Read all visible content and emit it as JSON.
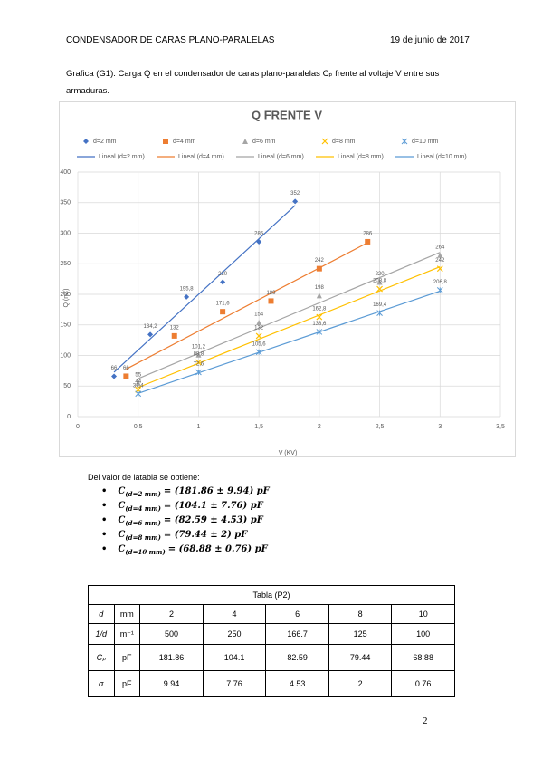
{
  "header": {
    "title": "CONDENSADOR DE CARAS PLANO-PARALELAS",
    "date": "19 de junio de 2017"
  },
  "caption": "Grafica (G1). Carga Q en el condensador de caras plano-paralelas Cₚ frente al voltaje V entre sus armaduras.",
  "chart_data": {
    "type": "scatter",
    "title": "Q FRENTE V",
    "x_label": "V (KV)",
    "y_label": "Q (nC)",
    "xlim": [
      0,
      3.5
    ],
    "xticks": [
      0,
      {
        "value": 0.5,
        "label": "0,5"
      },
      1,
      {
        "value": 1.5,
        "label": "1,5"
      },
      2,
      {
        "value": 2.5,
        "label": "2,5"
      },
      3,
      {
        "value": 3.5,
        "label": "3,5"
      }
    ],
    "ylim": [
      0,
      400
    ],
    "yticks": [
      0,
      50,
      100,
      150,
      200,
      250,
      300,
      350,
      400
    ],
    "grid": true,
    "series": [
      {
        "name": "d=2 mm",
        "trendline_name": "Lineal (d=2 mm)",
        "color": "#4472c4",
        "marker": "diamond",
        "x": [
          0.3,
          0.6,
          0.9,
          1.2,
          1.5,
          1.8
        ],
        "values": [
          66,
          134.2,
          195.8,
          220,
          286,
          352
        ],
        "value_labels": [
          "66",
          "134,2",
          "195,8",
          "220",
          "286",
          "352"
        ]
      },
      {
        "name": "d=4 mm",
        "trendline_name": "Lineal (d=4 mm)",
        "color": "#ed7d31",
        "marker": "square",
        "x": [
          0.4,
          0.8,
          1.2,
          1.6,
          2.0,
          2.4
        ],
        "values": [
          66,
          132,
          171.6,
          189,
          242,
          286
        ],
        "value_labels": [
          "66",
          "132",
          "171,6",
          "189",
          "242",
          "286"
        ]
      },
      {
        "name": "d=6 mm",
        "trendline_name": "Lineal (d=6 mm)",
        "color": "#a5a5a5",
        "marker": "triangle",
        "x": [
          0.5,
          1.0,
          1.5,
          2.0,
          2.5,
          3.0
        ],
        "values": [
          55,
          101.2,
          154,
          198,
          220,
          264
        ],
        "value_labels": [
          "55",
          "101,2",
          "154",
          "198",
          "220",
          "264"
        ]
      },
      {
        "name": "d=8 mm",
        "trendline_name": "Lineal (d=8 mm)",
        "color": "#ffc000",
        "marker": "x",
        "x": [
          0.5,
          1.0,
          1.5,
          2.0,
          2.5,
          3.0
        ],
        "values": [
          44,
          88.8,
          132,
          162.8,
          208.8,
          242
        ],
        "value_labels": [
          "44",
          "88,8",
          "132",
          "162,8",
          "208,8",
          "242"
        ]
      },
      {
        "name": "d=10 mm",
        "trendline_name": "Lineal (d=10 mm)",
        "color": "#5b9bd5",
        "marker": "asterisk",
        "x": [
          0.5,
          1.0,
          1.5,
          2.0,
          2.5,
          3.0
        ],
        "values": [
          37.4,
          72.6,
          105.6,
          138.6,
          169.4,
          206.8
        ],
        "value_labels": [
          "37,4",
          "72,6",
          "105,6",
          "138,6",
          "169,4",
          "206,8"
        ]
      }
    ]
  },
  "intro": "Del valor de latabla se obtiene:",
  "results": [
    {
      "symbol": "C",
      "sub": "(d=2 mm)",
      "expr": "= (181.86 ± 9.94) pF"
    },
    {
      "symbol": "C",
      "sub": "(d=4 mm)",
      "expr": "= (104.1 ± 7.76) pF"
    },
    {
      "symbol": "C",
      "sub": "(d=6 mm)",
      "expr": "= (82.59 ± 4.53) pF"
    },
    {
      "symbol": "C",
      "sub": "(d=8 mm)",
      "expr": "= (79.44 ± 2) pF"
    },
    {
      "symbol": "C",
      "sub": "(d=10 mm)",
      "expr": "= (68.88 ± 0.76) pF"
    }
  ],
  "table": {
    "title": "Tabla (P2)",
    "rows": [
      [
        "d",
        "mm",
        "2",
        "4",
        "6",
        "8",
        "10"
      ],
      [
        "1/d",
        "m⁻¹",
        "500",
        "250",
        "166.7",
        "125",
        "100"
      ],
      [
        "Cₚ",
        "pF",
        "181.86",
        "104.1",
        "82.59",
        "79.44",
        "68.88"
      ],
      [
        "σ",
        "pF",
        "9.94",
        "7.76",
        "4.53",
        "2",
        "0.76"
      ]
    ]
  },
  "page_number": "2"
}
